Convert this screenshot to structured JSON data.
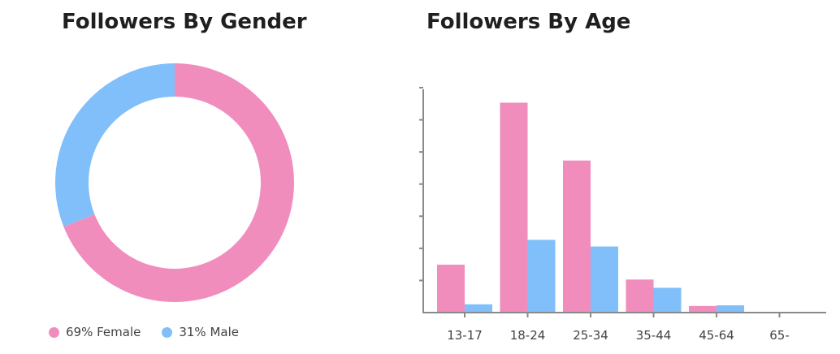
{
  "colors": {
    "female": "#f08dbd",
    "male": "#80bffa",
    "axis": "#8a8a8a"
  },
  "gender_title": "Followers By Gender",
  "age_title": "Followers By Age",
  "legend": {
    "female_label": "69% Female",
    "male_label": "31% Male"
  },
  "chart_data": [
    {
      "type": "pie",
      "title": "Followers By Gender",
      "labels": [
        "Female",
        "Male"
      ],
      "values": [
        69,
        31
      ],
      "unit": "%",
      "donut": true
    },
    {
      "type": "bar",
      "title": "Followers By Age",
      "categories": [
        "13-17",
        "18-24",
        "25-34",
        "35-44",
        "45-64",
        "65-"
      ],
      "series": [
        {
          "name": "Female",
          "values": [
            14.5,
            63.5,
            46,
            10,
            2,
            0
          ]
        },
        {
          "name": "Male",
          "values": [
            2.5,
            22,
            20,
            7.5,
            2.2,
            0
          ]
        }
      ],
      "ylim": [
        0,
        70
      ],
      "grid": false,
      "y_tick_labels": false
    }
  ]
}
